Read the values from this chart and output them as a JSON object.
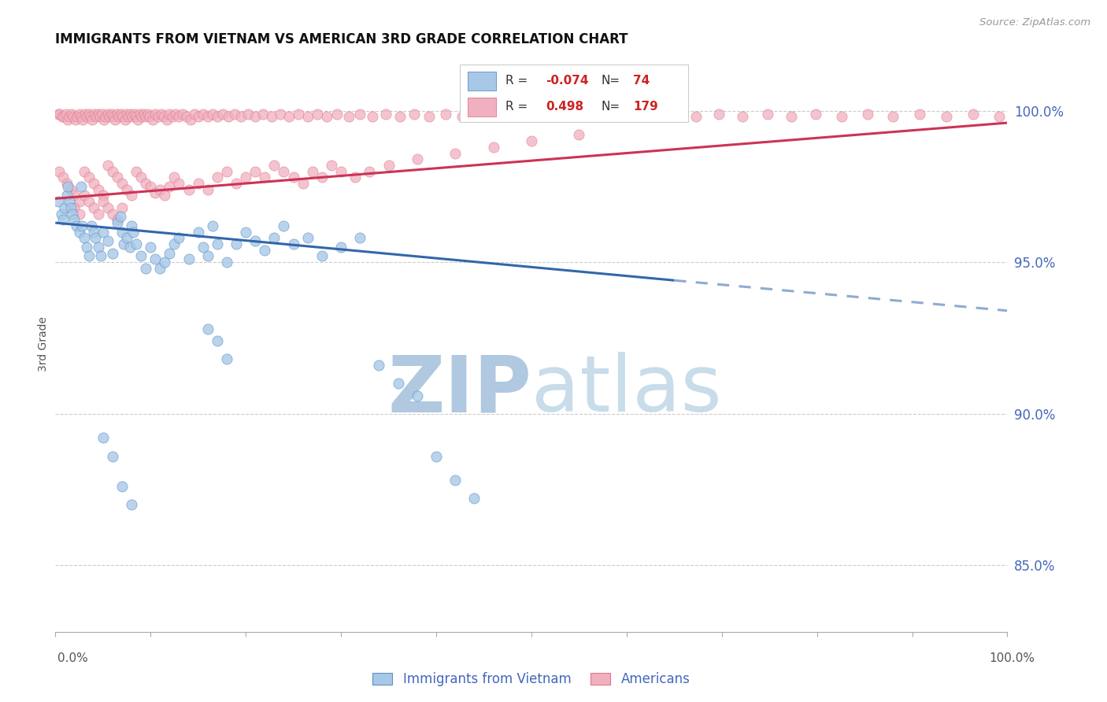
{
  "title": "IMMIGRANTS FROM VIETNAM VS AMERICAN 3RD GRADE CORRELATION CHART",
  "source_text": "Source: ZipAtlas.com",
  "ylabel": "3rd Grade",
  "ytick_values": [
    0.85,
    0.9,
    0.95,
    1.0
  ],
  "xlim": [
    0.0,
    1.0
  ],
  "ylim": [
    0.828,
    1.018
  ],
  "legend_r_blue": "-0.074",
  "legend_n_blue": "74",
  "legend_r_pink": "0.498",
  "legend_n_pink": "179",
  "blue_color": "#a8c8e8",
  "pink_color": "#f0b0c0",
  "blue_edge": "#6090c0",
  "pink_edge": "#e07888",
  "blue_trend_color": "#3366aa",
  "pink_trend_color": "#cc3355",
  "watermark_zip": "ZIP",
  "watermark_atlas": "atlas",
  "watermark_color": "#c5d8ee",
  "blue_trend_x0": 0.0,
  "blue_trend_y0": 0.963,
  "blue_trend_x1": 0.65,
  "blue_trend_y1": 0.944,
  "blue_trend_xdash0": 0.65,
  "blue_trend_ydash0": 0.944,
  "blue_trend_xdash1": 1.0,
  "blue_trend_ydash1": 0.934,
  "pink_trend_x0": 0.0,
  "pink_trend_y0": 0.971,
  "pink_trend_x1": 1.0,
  "pink_trend_y1": 0.996,
  "blue_x": [
    0.003,
    0.006,
    0.008,
    0.01,
    0.012,
    0.013,
    0.015,
    0.016,
    0.018,
    0.02,
    0.022,
    0.025,
    0.027,
    0.028,
    0.03,
    0.033,
    0.035,
    0.038,
    0.04,
    0.042,
    0.045,
    0.048,
    0.05,
    0.055,
    0.06,
    0.065,
    0.068,
    0.07,
    0.072,
    0.075,
    0.078,
    0.08,
    0.082,
    0.085,
    0.09,
    0.095,
    0.1,
    0.105,
    0.11,
    0.115,
    0.12,
    0.125,
    0.13,
    0.14,
    0.15,
    0.155,
    0.16,
    0.165,
    0.17,
    0.18,
    0.19,
    0.2,
    0.21,
    0.22,
    0.23,
    0.24,
    0.25,
    0.265,
    0.28,
    0.3,
    0.32,
    0.34,
    0.36,
    0.38,
    0.4,
    0.42,
    0.44,
    0.16,
    0.17,
    0.18,
    0.05,
    0.06,
    0.07,
    0.08
  ],
  "blue_y": [
    0.97,
    0.966,
    0.964,
    0.968,
    0.972,
    0.975,
    0.97,
    0.968,
    0.966,
    0.964,
    0.962,
    0.96,
    0.975,
    0.962,
    0.958,
    0.955,
    0.952,
    0.962,
    0.96,
    0.958,
    0.955,
    0.952,
    0.96,
    0.957,
    0.953,
    0.963,
    0.965,
    0.96,
    0.956,
    0.958,
    0.955,
    0.962,
    0.96,
    0.956,
    0.952,
    0.948,
    0.955,
    0.951,
    0.948,
    0.95,
    0.953,
    0.956,
    0.958,
    0.951,
    0.96,
    0.955,
    0.952,
    0.962,
    0.956,
    0.95,
    0.956,
    0.96,
    0.957,
    0.954,
    0.958,
    0.962,
    0.956,
    0.958,
    0.952,
    0.955,
    0.958,
    0.916,
    0.91,
    0.906,
    0.886,
    0.878,
    0.872,
    0.928,
    0.924,
    0.918,
    0.892,
    0.886,
    0.876,
    0.87
  ],
  "pink_x": [
    0.003,
    0.005,
    0.007,
    0.009,
    0.011,
    0.013,
    0.015,
    0.017,
    0.019,
    0.021,
    0.023,
    0.025,
    0.027,
    0.029,
    0.031,
    0.033,
    0.035,
    0.037,
    0.039,
    0.041,
    0.043,
    0.045,
    0.047,
    0.049,
    0.051,
    0.053,
    0.055,
    0.057,
    0.059,
    0.061,
    0.063,
    0.065,
    0.067,
    0.069,
    0.071,
    0.073,
    0.075,
    0.077,
    0.079,
    0.081,
    0.083,
    0.085,
    0.087,
    0.089,
    0.091,
    0.093,
    0.095,
    0.097,
    0.099,
    0.102,
    0.105,
    0.108,
    0.111,
    0.114,
    0.117,
    0.12,
    0.123,
    0.126,
    0.13,
    0.134,
    0.138,
    0.142,
    0.146,
    0.15,
    0.155,
    0.16,
    0.165,
    0.17,
    0.176,
    0.182,
    0.188,
    0.195,
    0.202,
    0.21,
    0.218,
    0.227,
    0.236,
    0.245,
    0.255,
    0.265,
    0.275,
    0.285,
    0.296,
    0.308,
    0.32,
    0.333,
    0.347,
    0.362,
    0.377,
    0.393,
    0.41,
    0.427,
    0.445,
    0.463,
    0.482,
    0.501,
    0.521,
    0.541,
    0.562,
    0.583,
    0.605,
    0.627,
    0.65,
    0.673,
    0.697,
    0.722,
    0.748,
    0.773,
    0.799,
    0.826,
    0.853,
    0.88,
    0.908,
    0.936,
    0.964,
    0.991,
    0.004,
    0.008,
    0.012,
    0.016,
    0.02,
    0.025,
    0.03,
    0.035,
    0.04,
    0.045,
    0.05,
    0.055,
    0.06,
    0.065,
    0.07,
    0.075,
    0.08,
    0.085,
    0.09,
    0.095,
    0.1,
    0.105,
    0.11,
    0.115,
    0.12,
    0.125,
    0.13,
    0.14,
    0.15,
    0.16,
    0.17,
    0.18,
    0.19,
    0.2,
    0.21,
    0.22,
    0.23,
    0.24,
    0.25,
    0.26,
    0.27,
    0.28,
    0.29,
    0.3,
    0.315,
    0.33,
    0.35,
    0.38,
    0.42,
    0.46,
    0.5,
    0.55,
    0.02,
    0.025,
    0.03,
    0.035,
    0.04,
    0.045,
    0.05,
    0.055,
    0.06,
    0.065,
    0.07
  ],
  "pink_y": [
    0.999,
    0.999,
    0.998,
    0.998,
    0.999,
    0.997,
    0.998,
    0.999,
    0.998,
    0.997,
    0.998,
    0.999,
    0.998,
    0.997,
    0.999,
    0.998,
    0.999,
    0.998,
    0.997,
    0.999,
    0.998,
    0.999,
    0.998,
    0.999,
    0.997,
    0.998,
    0.999,
    0.998,
    0.999,
    0.998,
    0.997,
    0.999,
    0.998,
    0.999,
    0.998,
    0.997,
    0.999,
    0.998,
    0.999,
    0.998,
    0.999,
    0.998,
    0.997,
    0.999,
    0.998,
    0.999,
    0.998,
    0.999,
    0.998,
    0.997,
    0.999,
    0.998,
    0.999,
    0.998,
    0.997,
    0.999,
    0.998,
    0.999,
    0.998,
    0.999,
    0.998,
    0.997,
    0.999,
    0.998,
    0.999,
    0.998,
    0.999,
    0.998,
    0.999,
    0.998,
    0.999,
    0.998,
    0.999,
    0.998,
    0.999,
    0.998,
    0.999,
    0.998,
    0.999,
    0.998,
    0.999,
    0.998,
    0.999,
    0.998,
    0.999,
    0.998,
    0.999,
    0.998,
    0.999,
    0.998,
    0.999,
    0.998,
    0.999,
    0.998,
    0.999,
    0.998,
    0.999,
    0.998,
    0.999,
    0.998,
    0.999,
    0.998,
    0.999,
    0.998,
    0.999,
    0.998,
    0.999,
    0.998,
    0.999,
    0.998,
    0.999,
    0.998,
    0.999,
    0.998,
    0.999,
    0.998,
    0.98,
    0.978,
    0.976,
    0.974,
    0.972,
    0.97,
    0.98,
    0.978,
    0.976,
    0.974,
    0.972,
    0.982,
    0.98,
    0.978,
    0.976,
    0.974,
    0.972,
    0.98,
    0.978,
    0.976,
    0.975,
    0.973,
    0.974,
    0.972,
    0.975,
    0.978,
    0.976,
    0.974,
    0.976,
    0.974,
    0.978,
    0.98,
    0.976,
    0.978,
    0.98,
    0.978,
    0.982,
    0.98,
    0.978,
    0.976,
    0.98,
    0.978,
    0.982,
    0.98,
    0.978,
    0.98,
    0.982,
    0.984,
    0.986,
    0.988,
    0.99,
    0.992,
    0.968,
    0.966,
    0.972,
    0.97,
    0.968,
    0.966,
    0.97,
    0.968,
    0.966,
    0.964,
    0.968
  ]
}
